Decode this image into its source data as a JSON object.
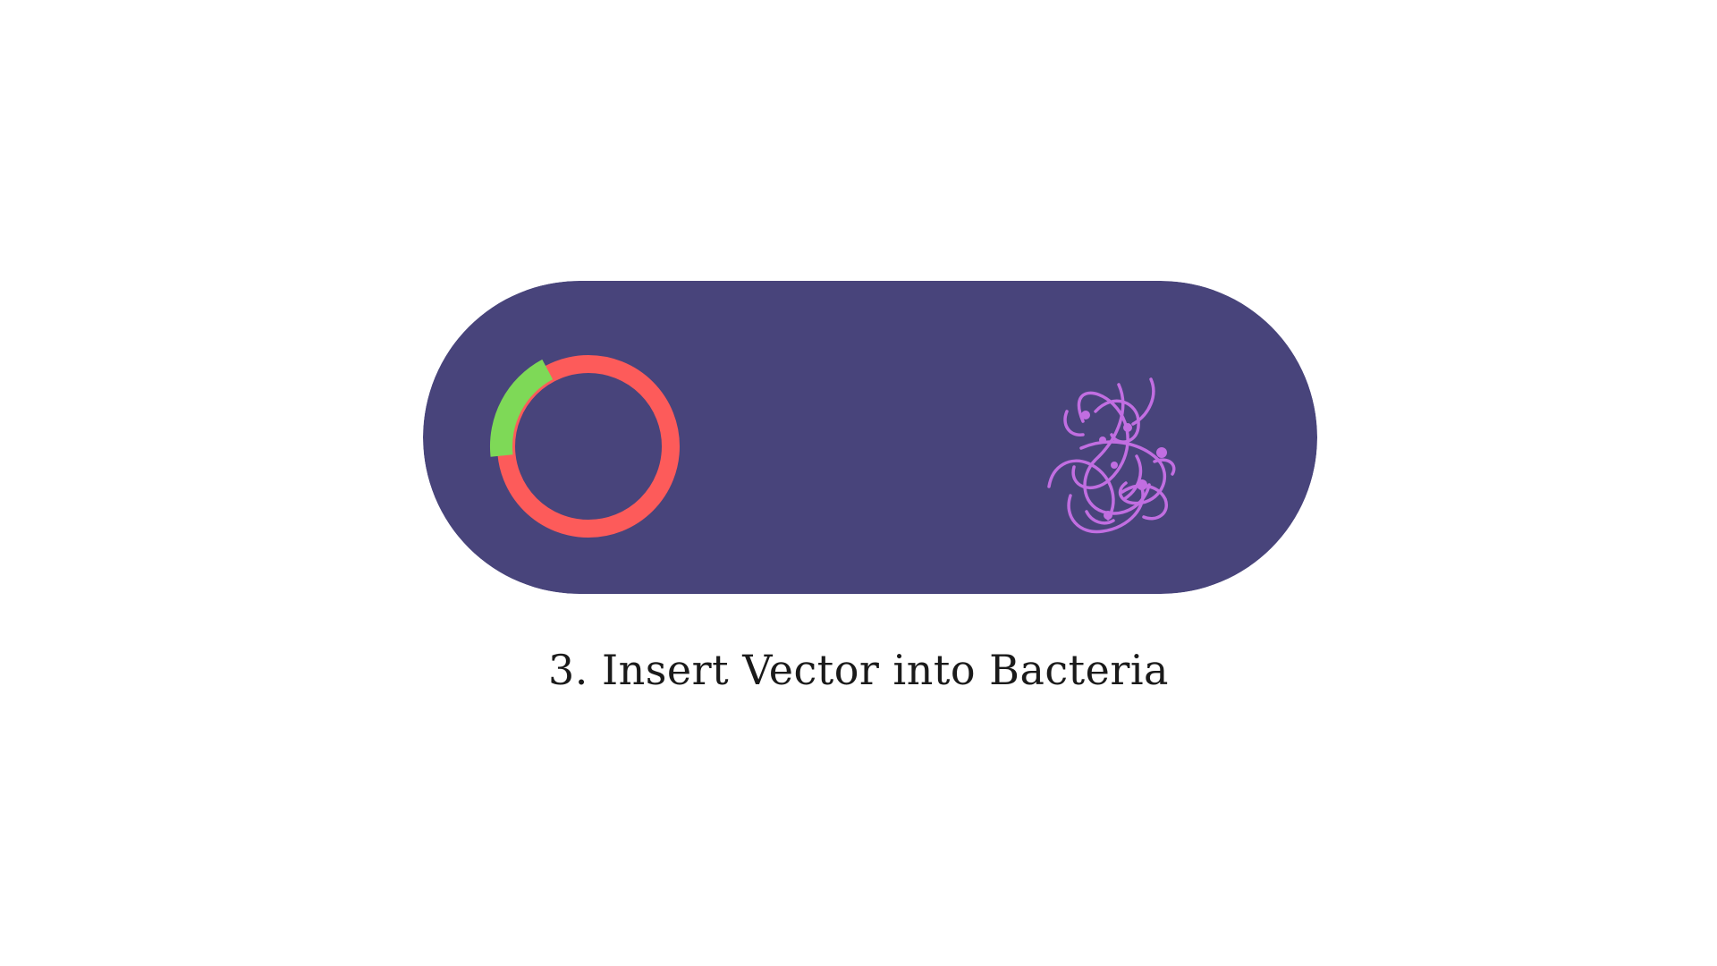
{
  "slide": {
    "caption": "3. Insert Vector into Bacteria"
  },
  "colors": {
    "background": "#ffffff",
    "capsule": "#48447b",
    "plasmid_ring": "#fd5b5a",
    "insert_segment": "#7ed957",
    "bacteria": "#c16ee1"
  },
  "icons": {
    "plasmid": "plasmid-icon",
    "bacteria": "bacteria-icon"
  }
}
